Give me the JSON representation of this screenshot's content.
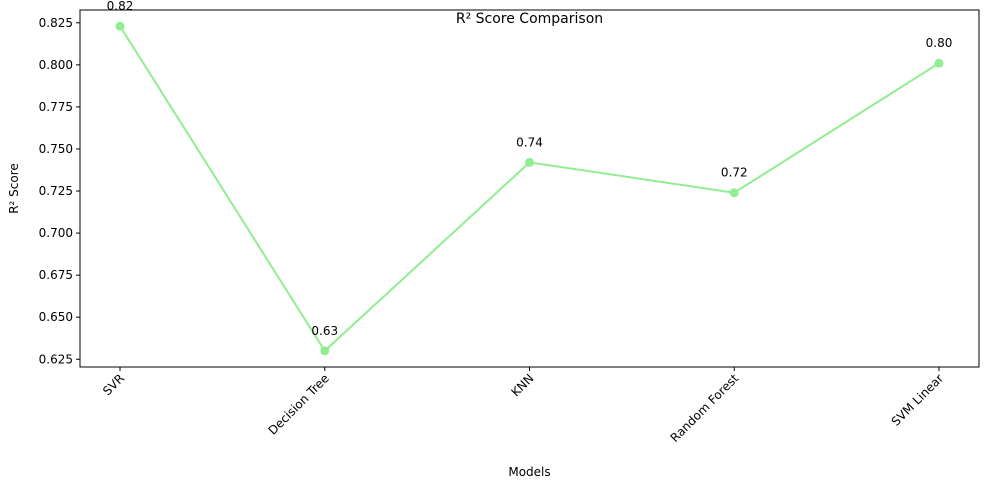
{
  "chart_data": {
    "type": "line",
    "title": "R² Score Comparison",
    "xlabel": "Models",
    "ylabel": "R² Score",
    "categories": [
      "SVR",
      "Decision Tree",
      "KNN",
      "Random Forest",
      "SVM Linear"
    ],
    "values": [
      0.823,
      0.63,
      0.742,
      0.724,
      0.801
    ],
    "data_labels": [
      "0.82",
      "0.63",
      "0.74",
      "0.72",
      "0.80"
    ],
    "y_ticks": [
      0.625,
      0.65,
      0.675,
      0.7,
      0.725,
      0.75,
      0.775,
      0.8,
      0.825
    ],
    "y_tick_labels": [
      "0.625",
      "0.650",
      "0.675",
      "0.700",
      "0.725",
      "0.750",
      "0.775",
      "0.800",
      "0.825"
    ],
    "ylim": [
      0.6204,
      0.8326
    ],
    "x_tick_rotation_deg": -45,
    "grid": false,
    "line_color": "#90ee90"
  }
}
